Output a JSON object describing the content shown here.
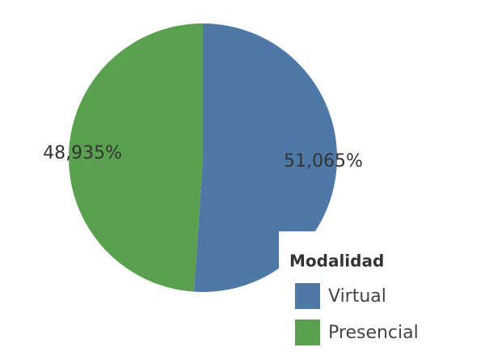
{
  "chart_data": {
    "type": "pie",
    "categories": [
      "Virtual",
      "Presencial"
    ],
    "values": [
      51.065,
      48.935
    ],
    "value_labels": [
      "51,065%",
      "48,935%"
    ],
    "colors": [
      "#4e79a7",
      "#59a14f"
    ],
    "legend_title": "Modalidad"
  }
}
